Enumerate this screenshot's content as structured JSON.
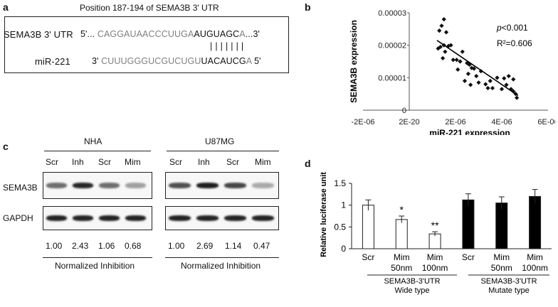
{
  "panel_a": {
    "letter": "a",
    "title": "Position 187-194 of SEMA3B 3' UTR",
    "row1_label": "SEMA3B 3' UTR",
    "row1_prefix": "5'...",
    "row1_grey": "CAGGAUAACCCUUGA",
    "row1_seed": "AUGUAGC",
    "row1_tail_grey": "A",
    "row1_end": "...3'",
    "pairing": "| | | | | | |",
    "row2_label": "miR-221",
    "row2_prefix": "3'",
    "row2_grey": "CUUUGGGUCGUCUGU",
    "row2_seed": "UACAUCG",
    "row2_tail_grey": "A",
    "row2_end": "5'"
  },
  "panel_b": {
    "letter": "b",
    "p_label_italic": "p",
    "p_label_rest": "<0.001",
    "r2_label": "R²=0.606"
  },
  "panel_c": {
    "letter": "c",
    "group1": "NHA",
    "group2": "U87MG",
    "lanes1": [
      "Scr",
      "Inh",
      "Scr",
      "Mim"
    ],
    "lanes2": [
      "Scr",
      "Inh",
      "Scr",
      "Mim"
    ],
    "row1_label": "SEMA3B",
    "row2_label": "GAPDH",
    "values1": [
      "1.00",
      "2.43",
      "1.06",
      "0.68"
    ],
    "values2": [
      "1.00",
      "2.69",
      "1.14",
      "0.47"
    ],
    "footer1": "Normalized Inhibition",
    "footer2": "Normalized Inhibition",
    "band_intensity1": [
      0.55,
      0.9,
      0.55,
      0.3
    ],
    "band_intensity2": [
      0.7,
      0.95,
      0.75,
      0.25
    ]
  },
  "panel_d": {
    "letter": "d",
    "group1_label_line1": "SEMA3B-3'UTR",
    "group1_label_line2": "Wide type",
    "group2_label_line1": "SEMA3B-3'UTR",
    "group2_label_line2": "Mutate type"
  },
  "chart_data": [
    {
      "type": "scatter",
      "panel": "b",
      "title": "",
      "xlabel": "miR-221 expression",
      "ylabel": "SEMA3B expression",
      "xlim": [
        -2e-06,
        6e-06
      ],
      "ylim": [
        0,
        3e-05
      ],
      "x_tick_labels": [
        "-2E-06",
        "2E-20",
        "2E-06",
        "4E-06",
        "6E-06"
      ],
      "x_tick_values": [
        -2e-06,
        0,
        2e-06,
        4e-06,
        6e-06
      ],
      "y_tick_labels": [
        "0",
        "0.00001",
        "0.00002",
        "0.00003"
      ],
      "y_tick_values": [
        0,
        1e-05,
        2e-05,
        3e-05
      ],
      "trendline": {
        "x": [
          1.2e-06,
          4.7e-06
        ],
        "y": [
          2.15e-05,
          4.5e-06
        ]
      },
      "annotations": [
        "p<0.001",
        "R²=0.606"
      ],
      "points": [
        {
          "x": 1.5e-06,
          "y": 2.8e-05
        },
        {
          "x": 1.4e-06,
          "y": 2.6e-05
        },
        {
          "x": 1.3e-06,
          "y": 2.45e-05
        },
        {
          "x": 1.6e-06,
          "y": 2.4e-05
        },
        {
          "x": 1.5e-06,
          "y": 2e-05
        },
        {
          "x": 1.7e-06,
          "y": 1.98e-05
        },
        {
          "x": 1.35e-06,
          "y": 1.95e-05
        },
        {
          "x": 1.8e-06,
          "y": 2e-05
        },
        {
          "x": 1.25e-06,
          "y": 1.9e-05
        },
        {
          "x": 1.55e-06,
          "y": 1.8e-05
        },
        {
          "x": 1.9e-06,
          "y": 1.55e-05
        },
        {
          "x": 2.05e-06,
          "y": 1.55e-05
        },
        {
          "x": 1.45e-06,
          "y": 1.6e-05
        },
        {
          "x": 2.3e-06,
          "y": 1.8e-05
        },
        {
          "x": 2.2e-06,
          "y": 1.5e-05
        },
        {
          "x": 2.1e-06,
          "y": 1.25e-05
        },
        {
          "x": 2.5e-06,
          "y": 1.45e-05
        },
        {
          "x": 2.6e-06,
          "y": 1.4e-05
        },
        {
          "x": 2.7e-06,
          "y": 1.3e-05
        },
        {
          "x": 2.8e-06,
          "y": 1.28e-05
        },
        {
          "x": 2.55e-06,
          "y": 1.12e-05
        },
        {
          "x": 2.9e-06,
          "y": 1.05e-05
        },
        {
          "x": 3.1e-06,
          "y": 1.2e-05
        },
        {
          "x": 2.4e-06,
          "y": 9e-06
        },
        {
          "x": 2.65e-06,
          "y": 7.8e-06
        },
        {
          "x": 3.3e-06,
          "y": 8e-06
        },
        {
          "x": 3.4e-06,
          "y": 6.8e-06
        },
        {
          "x": 3.6e-06,
          "y": 6.8e-06
        },
        {
          "x": 3.5e-06,
          "y": 9e-06
        },
        {
          "x": 3.8e-06,
          "y": 1e-05
        },
        {
          "x": 4.1e-06,
          "y": 9.8e-06
        },
        {
          "x": 4.3e-06,
          "y": 1.05e-05
        },
        {
          "x": 4.5e-06,
          "y": 9.5e-06
        },
        {
          "x": 4.2e-06,
          "y": 7.8e-06
        },
        {
          "x": 4e-06,
          "y": 6.5e-06
        },
        {
          "x": 4.4e-06,
          "y": 6.5e-06
        },
        {
          "x": 4.5e-06,
          "y": 5.8e-06
        },
        {
          "x": 4.6e-06,
          "y": 5e-06
        },
        {
          "x": 4.65e-06,
          "y": 3.8e-06
        },
        {
          "x": 3e-06,
          "y": 8.5e-06
        }
      ]
    },
    {
      "type": "bar",
      "panel": "d",
      "title": "",
      "ylabel": "Relative luciferase unit",
      "ylim": [
        0,
        1.5
      ],
      "y_tick_labels": [
        "0",
        "0.5",
        "1",
        "1.5"
      ],
      "y_tick_values": [
        0,
        0.5,
        1,
        1.5
      ],
      "categories": [
        "Scr",
        "Mim",
        "Mim",
        "Scr",
        "Mim",
        "Mim"
      ],
      "sub_labels": [
        "",
        "50nm",
        "100nm",
        "",
        "50nm",
        "100nm"
      ],
      "values": [
        1.0,
        0.67,
        0.34,
        1.12,
        1.05,
        1.2
      ],
      "errors": [
        0.12,
        0.08,
        0.05,
        0.14,
        0.14,
        0.16
      ],
      "significance": [
        "",
        "*",
        "**",
        "",
        "",
        ""
      ],
      "bar_colors": [
        "#ffffff",
        "#ffffff",
        "#ffffff",
        "#000000",
        "#000000",
        "#000000"
      ]
    }
  ]
}
